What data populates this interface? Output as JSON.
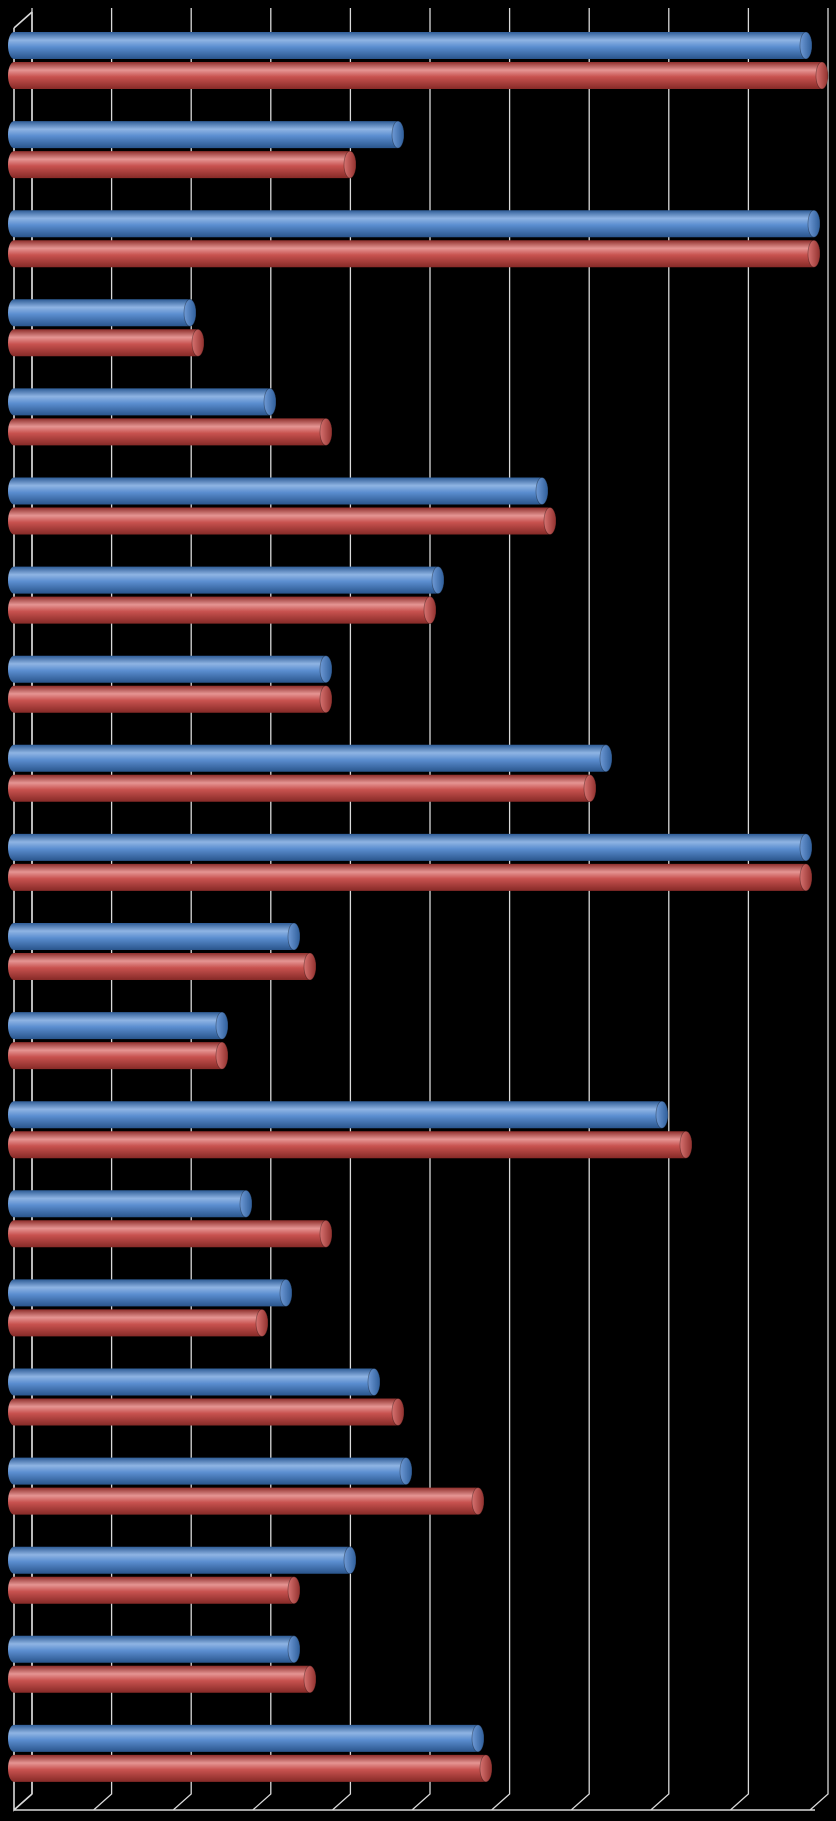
{
  "chart_data": {
    "type": "bar",
    "orientation": "horizontal",
    "style": "3d-cylinder",
    "title": "",
    "xlabel": "",
    "ylabel": "",
    "categories": [
      "",
      "",
      "",
      "",
      "",
      "",
      "",
      "",
      "",
      "",
      "",
      "",
      "",
      "",
      "",
      "",
      "",
      "",
      "",
      ""
    ],
    "xlim": [
      0,
      10
    ],
    "grid": true,
    "legend": "none",
    "series": [
      {
        "color": "#4F81BD",
        "values": [
          9.9,
          4.8,
          10.0,
          2.2,
          3.2,
          6.6,
          5.3,
          3.9,
          7.4,
          9.9,
          3.5,
          2.6,
          8.1,
          2.9,
          3.4,
          4.5,
          4.9,
          4.2,
          3.5,
          5.8
        ]
      },
      {
        "color": "#C0504D",
        "values": [
          10.1,
          4.2,
          10.0,
          2.3,
          3.9,
          6.7,
          5.2,
          3.9,
          7.2,
          9.9,
          3.7,
          2.6,
          8.4,
          3.9,
          3.1,
          4.8,
          5.8,
          3.5,
          3.7,
          5.9
        ]
      }
    ]
  }
}
